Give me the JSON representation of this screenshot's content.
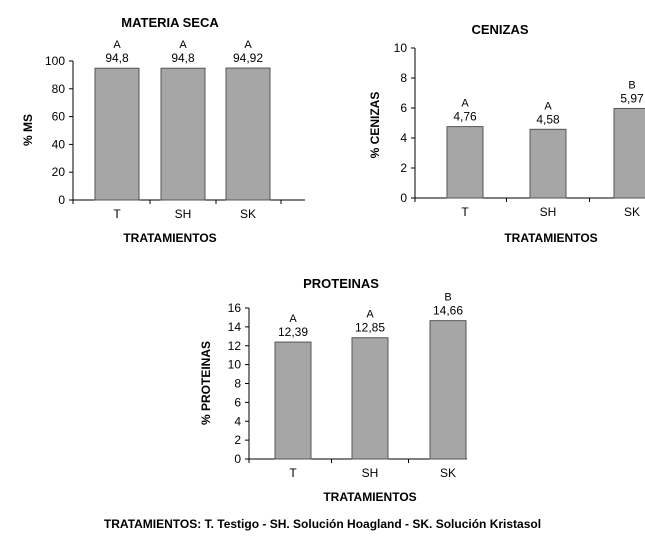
{
  "chart_data": [
    {
      "type": "bar",
      "title": "MATERIA SECA",
      "xlabel": "TRATAMIENTOS",
      "ylabel": "% MS",
      "ylim": [
        0,
        100
      ],
      "yticks": [
        0,
        20,
        40,
        60,
        80,
        100
      ],
      "categories": [
        "T",
        "SH",
        "SK"
      ],
      "values": [
        94.8,
        94.8,
        94.92
      ],
      "value_labels": [
        "94,8",
        "94,8",
        "94,92"
      ],
      "letters": [
        "A",
        "A",
        "A"
      ],
      "bar_color": "#a6a6a6"
    },
    {
      "type": "bar",
      "title": "CENIZAS",
      "xlabel": "TRATAMIENTOS",
      "ylabel": "% CENIZAS",
      "ylim": [
        0,
        10
      ],
      "yticks": [
        0,
        2,
        4,
        6,
        8,
        10
      ],
      "categories": [
        "T",
        "SH",
        "SK"
      ],
      "values": [
        4.76,
        4.58,
        5.97
      ],
      "value_labels": [
        "4,76",
        "4,58",
        "5,97"
      ],
      "letters": [
        "A",
        "A",
        "B"
      ],
      "bar_color": "#a6a6a6"
    },
    {
      "type": "bar",
      "title": "PROTEINAS",
      "xlabel": "TRATAMIENTOS",
      "ylabel": "% PROTEINAS",
      "ylim": [
        0,
        16
      ],
      "yticks": [
        0,
        2,
        4,
        6,
        8,
        10,
        12,
        14,
        16
      ],
      "categories": [
        "T",
        "SH",
        "SK"
      ],
      "values": [
        12.39,
        12.85,
        14.66
      ],
      "value_labels": [
        "12,39",
        "12,85",
        "14,66"
      ],
      "letters": [
        "A",
        "A",
        "B"
      ],
      "bar_color": "#a6a6a6"
    }
  ],
  "footer": "TRATAMIENTOS: T. Testigo - SH. Solución Hoagland - SK. Solución Kristasol"
}
